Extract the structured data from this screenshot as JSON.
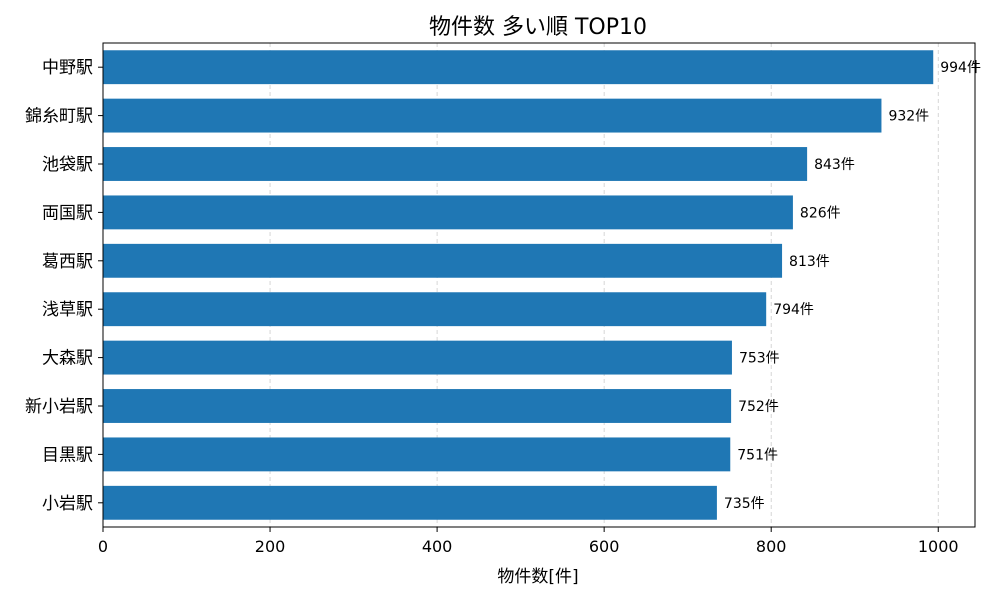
{
  "chart_data": {
    "type": "bar",
    "orientation": "horizontal",
    "title": "物件数 多い順 TOP10",
    "xlabel": "物件数[件]",
    "ylabel": "",
    "categories": [
      "中野駅",
      "錦糸町駅",
      "池袋駅",
      "両国駅",
      "葛西駅",
      "浅草駅",
      "大森駅",
      "新小岩駅",
      "目黒駅",
      "小岩駅"
    ],
    "values": [
      994,
      932,
      843,
      826,
      813,
      794,
      753,
      752,
      751,
      735
    ],
    "value_labels": [
      "994件",
      "932件",
      "843件",
      "826件",
      "813件",
      "794件",
      "753件",
      "752件",
      "751件",
      "735件"
    ],
    "xlim": [
      0,
      1044
    ],
    "xticks": [
      0,
      200,
      400,
      600,
      800,
      1000
    ],
    "xtick_labels": [
      "0",
      "200",
      "400",
      "600",
      "800",
      "1000"
    ],
    "grid": "x-axis dashed",
    "bar_color": "#1f77b4"
  }
}
